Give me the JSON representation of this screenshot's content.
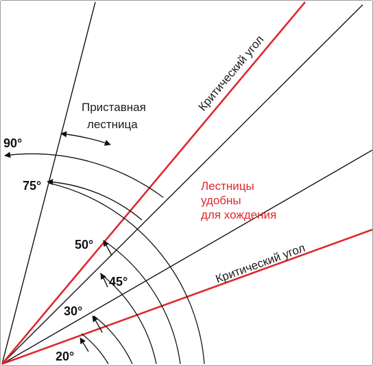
{
  "labels": {
    "ladder_line1": "Приставная",
    "ladder_line2": "лестница",
    "critical_upper": "Критический угол",
    "critical_lower": "Критический угол",
    "comfortable_line1": "Лестницы",
    "comfortable_line2": "удобны",
    "comfortable_line3": "для хождения"
  },
  "angles": {
    "a90": "90°",
    "a75": "75°",
    "a50": "50°",
    "a45": "45°",
    "a30": "30°",
    "a20": "20°"
  },
  "colors": {
    "critical": "#e0262e",
    "line": "#111111"
  }
}
